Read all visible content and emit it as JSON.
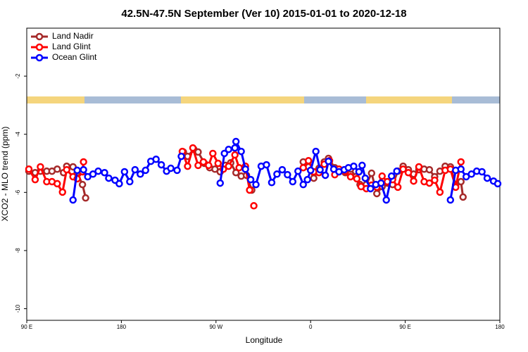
{
  "chart_data": {
    "type": "line",
    "title": "42.5N-47.5N September (Ver 10)   2015-01-01 to 2020-12-18",
    "x_label": "Longitude",
    "y_label": "XCO2 - MLO trend (ppm)",
    "xlim": [
      90,
      540
    ],
    "ylim": [
      -10.4,
      -0.35
    ],
    "xticks": [
      {
        "value": 90,
        "label": "90 E"
      },
      180,
      {
        "value": 270,
        "label": "90 W"
      },
      {
        "value": 360,
        "label": "0"
      },
      {
        "value": 450,
        "label": "90 E"
      },
      {
        "value": 540,
        "label": "180"
      }
    ],
    "yticks": [
      -2,
      -4,
      -6,
      -8,
      -10
    ],
    "legend": "top-left",
    "series": [
      {
        "name": "Land Nadir",
        "color": "#a52a2a",
        "x": [
          92,
          98,
          103,
          109,
          114,
          119,
          125,
          128,
          134,
          138,
          143,
          146,
          null,
          239,
          243,
          249,
          253,
          259,
          264,
          269,
          274,
          279,
          284,
          289,
          294,
          299,
          304,
          null,
          353,
          358,
          363,
          368,
          373,
          377,
          383,
          387,
          393,
          398,
          403,
          407,
          413,
          418,
          423,
          428,
          433,
          438,
          443,
          448,
          453,
          458,
          463,
          468,
          473,
          478,
          483,
          488,
          493,
          498,
          503,
          505
        ],
        "values": [
          -5.27,
          -5.32,
          -5.27,
          -5.27,
          -5.27,
          -5.2,
          -5.32,
          -5.1,
          -5.12,
          -5.32,
          -5.73,
          -6.19,
          null,
          -4.61,
          -4.76,
          -4.52,
          -4.61,
          -5.0,
          -5.15,
          -5.2,
          -5.29,
          -5.07,
          -4.98,
          -5.32,
          -5.44,
          -5.41,
          -5.92,
          null,
          -4.95,
          -5.12,
          -5.51,
          -5.17,
          -4.95,
          -4.83,
          -5.15,
          -5.29,
          -5.32,
          -5.2,
          -5.46,
          -5.73,
          -5.73,
          -5.34,
          -6.04,
          -5.8,
          -5.68,
          -5.73,
          -5.27,
          -5.1,
          -5.22,
          -5.37,
          -5.22,
          -5.2,
          -5.22,
          -5.46,
          -5.27,
          -5.1,
          -5.12,
          -5.73,
          -5.63,
          -6.16
        ]
      },
      {
        "name": "Land Glint",
        "color": "#ff0000",
        "x": [
          92,
          98,
          103,
          109,
          114,
          119,
          124,
          128,
          134,
          138,
          143,
          144,
          null,
          238,
          243,
          248,
          253,
          258,
          263,
          267,
          272,
          277,
          282,
          288,
          292,
          298,
          302,
          null,
          306,
          null,
          353,
          358,
          363,
          368,
          373,
          378,
          383,
          387,
          393,
          398,
          404,
          408,
          413,
          418,
          423,
          428,
          433,
          438,
          443,
          448,
          453,
          458,
          463,
          468,
          473,
          478,
          483,
          488,
          493,
          498,
          503
        ],
        "values": [
          -5.2,
          -5.56,
          -5.12,
          -5.63,
          -5.63,
          -5.7,
          -5.99,
          -5.22,
          -5.46,
          -5.53,
          -5.29,
          -4.95,
          null,
          -4.59,
          -5.1,
          -4.47,
          -5.07,
          -4.95,
          -5.07,
          -4.66,
          -5.0,
          -5.2,
          -5.1,
          -4.71,
          -5.15,
          -5.1,
          -5.92,
          null,
          -6.46,
          null,
          -5.15,
          -4.91,
          -5.29,
          -5.32,
          -5.03,
          -4.91,
          -5.39,
          -5.2,
          -5.27,
          -5.46,
          -5.53,
          -5.8,
          -5.87,
          -5.75,
          -5.82,
          -5.44,
          -5.63,
          -5.56,
          -5.82,
          -5.2,
          -5.32,
          -5.61,
          -5.12,
          -5.63,
          -5.68,
          -5.58,
          -5.99,
          -5.24,
          -5.2,
          -5.82,
          -4.95
        ]
      },
      {
        "name": "Ocean Glint",
        "color": "#0000ff",
        "x": [
          134,
          138,
          144,
          148,
          153,
          158,
          164,
          168,
          174,
          178,
          183,
          188,
          193,
          198,
          203,
          208,
          213,
          218,
          223,
          227,
          233,
          237,
          null,
          274,
          278,
          282,
          288,
          289,
          294,
          298,
          303,
          308,
          313,
          318,
          323,
          328,
          333,
          338,
          343,
          348,
          353,
          357,
          360,
          365,
          369,
          374,
          377,
          382,
          387,
          392,
          396,
          401,
          406,
          409,
          412,
          417,
          422,
          427,
          432,
          437,
          442,
          null,
          493,
          498,
          503,
          508,
          513,
          518,
          523,
          528,
          534,
          538
        ],
        "values": [
          -6.26,
          -5.24,
          -5.22,
          -5.46,
          -5.37,
          -5.27,
          -5.32,
          -5.51,
          -5.58,
          -5.7,
          -5.29,
          -5.63,
          -5.22,
          -5.37,
          -5.24,
          -4.93,
          -4.86,
          -5.05,
          -5.27,
          -5.17,
          -5.24,
          -4.76,
          null,
          -5.68,
          -4.66,
          -4.52,
          -4.47,
          -4.25,
          -4.59,
          -5.2,
          -5.56,
          -5.73,
          -5.1,
          -5.05,
          -5.66,
          -5.37,
          -5.22,
          -5.39,
          -5.63,
          -5.27,
          -5.73,
          -5.56,
          -5.24,
          -4.59,
          -5.22,
          -5.41,
          -4.93,
          -5.2,
          -5.29,
          -5.22,
          -5.15,
          -5.1,
          -5.29,
          -5.07,
          -5.51,
          -5.87,
          -5.73,
          -5.68,
          -6.26,
          -5.44,
          -5.27,
          null,
          -6.26,
          -5.24,
          -5.2,
          -5.46,
          -5.37,
          -5.27,
          -5.29,
          -5.51,
          -5.61,
          -5.7
        ]
      }
    ]
  }
}
